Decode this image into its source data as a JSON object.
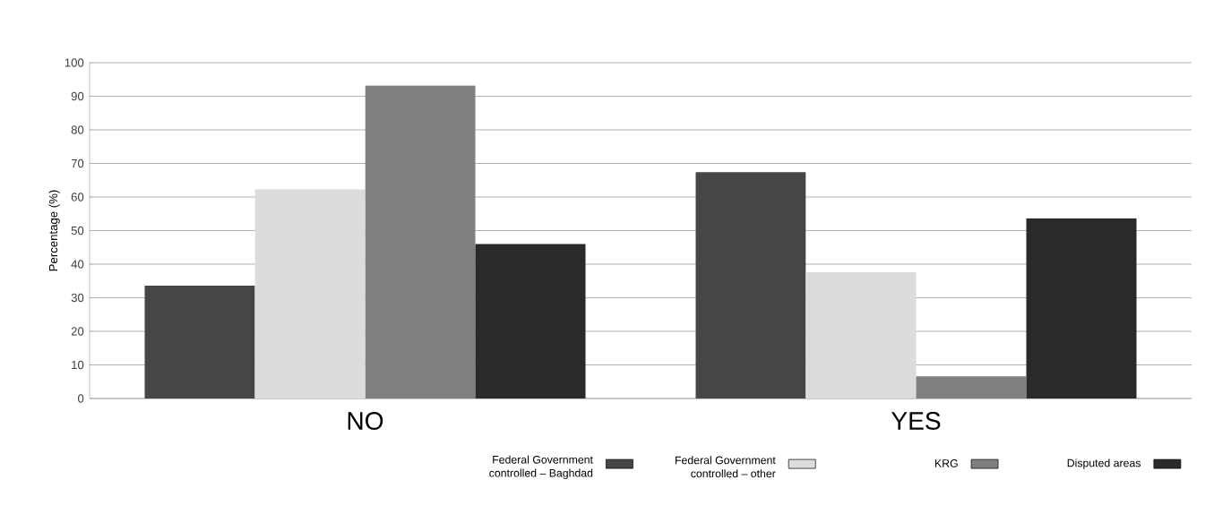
{
  "chart_data": {
    "type": "bar",
    "ylabel": "Percentage (%)",
    "categories": [
      "NO",
      "YES"
    ],
    "series": [
      {
        "name": "Federal Government controlled – Baghdad",
        "color": "#464646",
        "values": [
          33.6,
          67.4
        ]
      },
      {
        "name": "Federal Government controlled – other",
        "color": "#dcdcdc",
        "values": [
          62.3,
          37.6
        ]
      },
      {
        "name": "KRG",
        "color": "#7f7f7f",
        "values": [
          93.2,
          6.6
        ]
      },
      {
        "name": "Disputed areas",
        "color": "#2a2a2a",
        "values": [
          46.0,
          53.7
        ]
      }
    ],
    "ylim": [
      0,
      100
    ],
    "yticks": [
      0,
      10,
      20,
      30,
      40,
      50,
      60,
      70,
      80,
      90,
      100
    ],
    "grid": "y",
    "legend": "bottom right"
  }
}
